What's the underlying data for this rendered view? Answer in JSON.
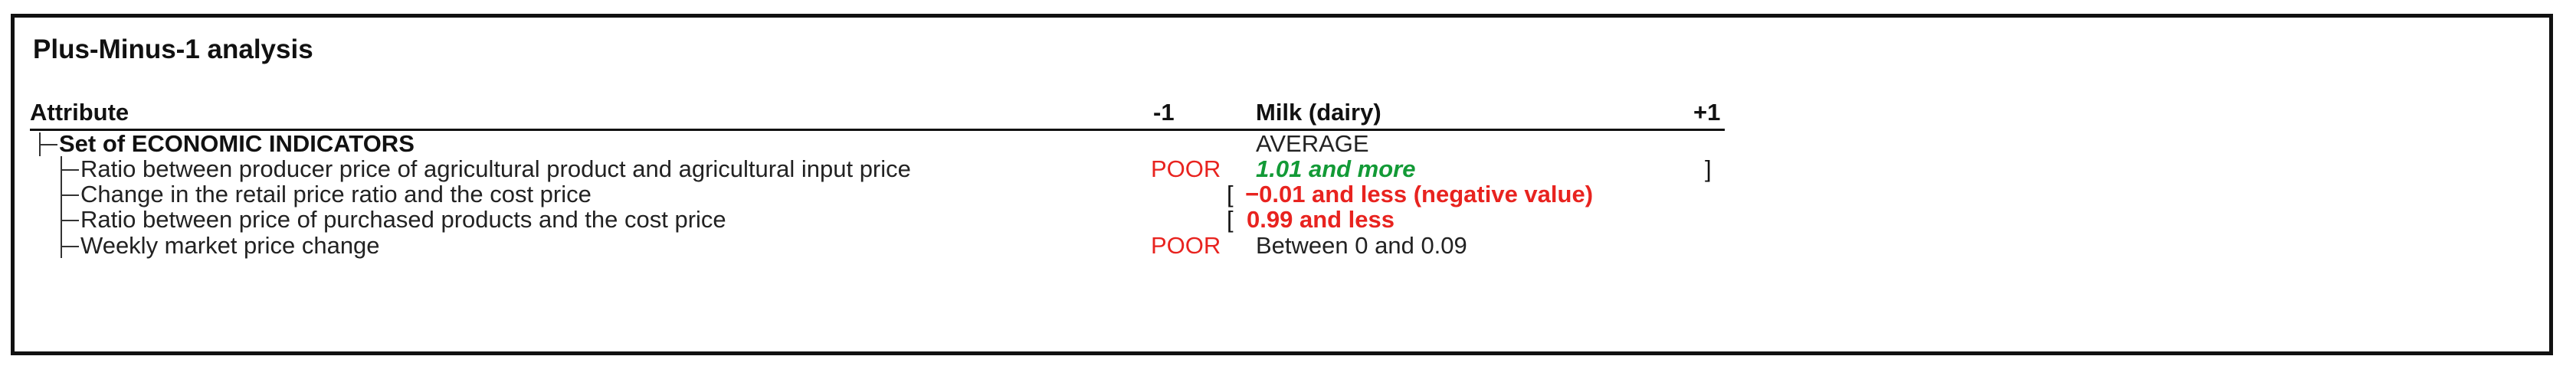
{
  "title": "Plus-Minus-1 analysis",
  "header": {
    "attribute": "Attribute",
    "minus": "-1",
    "alternative": "Milk (dairy)",
    "plus": "+1"
  },
  "group": {
    "label": "Set of ECONOMIC INDICATORS",
    "value": "AVERAGE"
  },
  "rows": [
    {
      "label": "Ratio between producer price of agricultural product and agricultural input price",
      "minus_text": "POOR",
      "value": "1.01 and more",
      "right_bracket": "]"
    },
    {
      "label": "Change in the retail price ratio and the cost price",
      "left_bracket": "[",
      "value": "−0.01 and less (negative value)"
    },
    {
      "label": "Ratio between price of purchased products and the cost price",
      "left_bracket": "[",
      "value": "0.99 and less"
    },
    {
      "label": "Weekly market price change",
      "minus_text": "POOR",
      "value": "Between 0 and 0.09"
    }
  ],
  "colors": {
    "poor": "#e8231f",
    "good": "#129a36",
    "bad": "#e8231f",
    "border": "#111111"
  }
}
